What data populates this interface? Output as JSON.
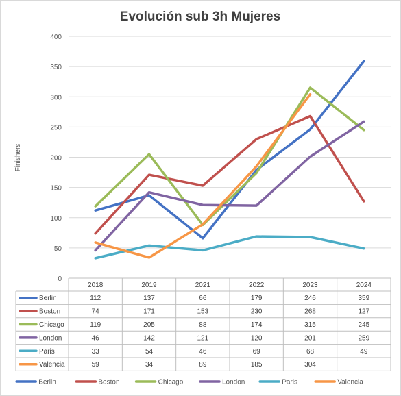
{
  "chart_data": {
    "type": "line",
    "title": "Evolución  sub 3h Mujeres",
    "xlabel": "",
    "ylabel": "Finishers",
    "ylim": [
      0,
      400
    ],
    "yticks": [
      0,
      50,
      100,
      150,
      200,
      250,
      300,
      350,
      400
    ],
    "grid": true,
    "legend": "bottom",
    "categories": [
      "2018",
      "2019",
      "2021",
      "2022",
      "2023",
      "2024"
    ],
    "series": [
      {
        "name": "Berlin",
        "color": "#4472c4",
        "values": [
          112,
          137,
          66,
          179,
          246,
          359
        ]
      },
      {
        "name": "Boston",
        "color": "#c0504d",
        "values": [
          74,
          171,
          153,
          230,
          268,
          127
        ]
      },
      {
        "name": "Chicago",
        "color": "#9bbb59",
        "values": [
          119,
          205,
          88,
          174,
          315,
          245
        ]
      },
      {
        "name": "London",
        "color": "#8064a2",
        "values": [
          46,
          142,
          121,
          120,
          201,
          259
        ]
      },
      {
        "name": "Paris",
        "color": "#4bacc6",
        "values": [
          33,
          54,
          46,
          69,
          68,
          49
        ]
      },
      {
        "name": "Valencia",
        "color": "#f79646",
        "values": [
          59,
          34,
          89,
          185,
          304,
          null
        ]
      }
    ]
  }
}
